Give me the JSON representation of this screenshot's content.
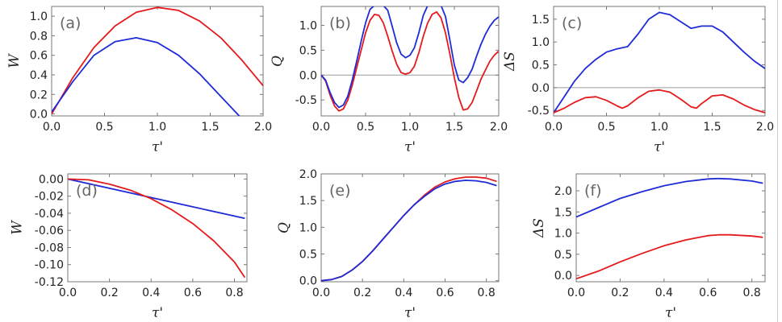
{
  "colors": {
    "red_series": "#e41a1c",
    "blue_series": "#1f2bd6"
  },
  "chart_data": [
    {
      "type": "line",
      "panel_label": "(a)",
      "xlabel": "τ'",
      "ylabel": "W",
      "xlim": [
        0,
        2.0
      ],
      "ylim": [
        -0.02,
        1.1
      ],
      "xticks": [
        "0.0",
        "0.5",
        "1.0",
        "1.5",
        "2.0"
      ],
      "xtick_values": [
        0,
        0.5,
        1,
        1.5,
        2
      ],
      "yticks": [
        "0.0",
        "0.2",
        "0.4",
        "0.6",
        "0.8",
        "1.0"
      ],
      "ytick_values": [
        0,
        0.2,
        0.4,
        0.6,
        0.8,
        1.0
      ],
      "zero_line": false,
      "series": [
        {
          "color": "#e41a1c",
          "x": [
            0,
            0.2,
            0.4,
            0.6,
            0.8,
            1.0,
            1.2,
            1.4,
            1.6,
            1.8,
            2.0
          ],
          "y": [
            0,
            0.37,
            0.68,
            0.9,
            1.04,
            1.09,
            1.06,
            0.95,
            0.78,
            0.55,
            0.29
          ]
        },
        {
          "color": "#1f2bd6",
          "x": [
            0,
            0.2,
            0.4,
            0.6,
            0.8,
            1.0,
            1.2,
            1.4,
            1.6,
            1.8,
            1.85
          ],
          "y": [
            0.02,
            0.33,
            0.6,
            0.74,
            0.78,
            0.73,
            0.6,
            0.41,
            0.18,
            -0.05,
            -0.1
          ]
        }
      ]
    },
    {
      "type": "line",
      "panel_label": "(b)",
      "xlabel": "τ'",
      "ylabel": "Q",
      "xlim": [
        0,
        2.0
      ],
      "ylim": [
        -0.82,
        1.38
      ],
      "xticks": [
        "0.0",
        "0.5",
        "1.0",
        "1.5",
        "2.0"
      ],
      "xtick_values": [
        0,
        0.5,
        1,
        1.5,
        2
      ],
      "yticks": [
        "-0.5",
        "0.0",
        "0.5",
        "1.0"
      ],
      "ytick_values": [
        -0.5,
        0,
        0.5,
        1.0
      ],
      "zero_line": true,
      "series": [
        {
          "color": "#e41a1c",
          "x": [
            0,
            0.05,
            0.1,
            0.15,
            0.2,
            0.25,
            0.3,
            0.35,
            0.4,
            0.45,
            0.5,
            0.55,
            0.6,
            0.65,
            0.7,
            0.75,
            0.8,
            0.85,
            0.9,
            0.95,
            1.0,
            1.05,
            1.1,
            1.15,
            1.2,
            1.25,
            1.3,
            1.35,
            1.4,
            1.45,
            1.5,
            1.55,
            1.6,
            1.65,
            1.7,
            1.75,
            1.8,
            1.85,
            1.9,
            1.95,
            2.0
          ],
          "y": [
            0,
            -0.12,
            -0.4,
            -0.62,
            -0.72,
            -0.68,
            -0.5,
            -0.2,
            0.15,
            0.5,
            0.85,
            1.1,
            1.22,
            1.2,
            1.05,
            0.78,
            0.48,
            0.22,
            0.05,
            0.02,
            0.05,
            0.18,
            0.45,
            0.78,
            1.05,
            1.22,
            1.27,
            1.15,
            0.85,
            0.42,
            -0.05,
            -0.45,
            -0.7,
            -0.68,
            -0.55,
            -0.32,
            -0.08,
            0.1,
            0.28,
            0.4,
            0.48
          ]
        },
        {
          "color": "#1f2bd6",
          "x": [
            0,
            0.05,
            0.1,
            0.15,
            0.2,
            0.25,
            0.3,
            0.35,
            0.4,
            0.45,
            0.5,
            0.55,
            0.6,
            0.65,
            0.7,
            0.75,
            0.8,
            0.85,
            0.9,
            0.95,
            1.0,
            1.05,
            1.1,
            1.15,
            1.2,
            1.25,
            1.3,
            1.35,
            1.4,
            1.45,
            1.5,
            1.55,
            1.6,
            1.65,
            1.7,
            1.75,
            1.8,
            1.85,
            1.9,
            1.95,
            2.0
          ],
          "y": [
            0,
            -0.1,
            -0.35,
            -0.55,
            -0.65,
            -0.6,
            -0.42,
            -0.1,
            0.28,
            0.68,
            1.05,
            1.32,
            1.4,
            1.4,
            1.4,
            1.3,
            0.98,
            0.65,
            0.42,
            0.35,
            0.4,
            0.55,
            0.85,
            1.2,
            1.4,
            1.4,
            1.4,
            1.4,
            1.18,
            0.7,
            0.2,
            -0.1,
            -0.15,
            -0.05,
            0.12,
            0.38,
            0.62,
            0.82,
            0.98,
            1.1,
            1.17
          ]
        }
      ]
    },
    {
      "type": "line",
      "panel_label": "(c)",
      "xlabel": "τ'",
      "ylabel": "ΔS",
      "xlim": [
        0,
        2.0
      ],
      "ylim": [
        -0.62,
        1.78
      ],
      "xticks": [
        "0.0",
        "0.5",
        "1.0",
        "1.5",
        "2.0"
      ],
      "xtick_values": [
        0,
        0.5,
        1,
        1.5,
        2
      ],
      "yticks": [
        "-0.5",
        "0.0",
        "0.5",
        "1.0",
        "1.5"
      ],
      "ytick_values": [
        -0.5,
        0,
        0.5,
        1.0,
        1.5
      ],
      "zero_line": true,
      "series": [
        {
          "color": "#1f2bd6",
          "x": [
            0,
            0.1,
            0.2,
            0.3,
            0.4,
            0.5,
            0.6,
            0.7,
            0.8,
            0.9,
            1.0,
            1.1,
            1.2,
            1.3,
            1.4,
            1.5,
            1.6,
            1.7,
            1.8,
            1.9,
            2.0
          ],
          "y": [
            -0.55,
            -0.2,
            0.15,
            0.42,
            0.62,
            0.78,
            0.85,
            0.9,
            1.18,
            1.5,
            1.65,
            1.6,
            1.45,
            1.3,
            1.35,
            1.35,
            1.22,
            1.0,
            0.78,
            0.58,
            0.42
          ]
        },
        {
          "color": "#e41a1c",
          "x": [
            0,
            0.1,
            0.2,
            0.3,
            0.4,
            0.5,
            0.6,
            0.65,
            0.7,
            0.8,
            0.9,
            1.0,
            1.1,
            1.2,
            1.3,
            1.35,
            1.4,
            1.5,
            1.6,
            1.7,
            1.8,
            1.9,
            2.0
          ],
          "y": [
            -0.55,
            -0.45,
            -0.32,
            -0.22,
            -0.2,
            -0.28,
            -0.4,
            -0.45,
            -0.4,
            -0.22,
            -0.08,
            -0.05,
            -0.1,
            -0.25,
            -0.42,
            -0.45,
            -0.35,
            -0.18,
            -0.16,
            -0.25,
            -0.38,
            -0.48,
            -0.55
          ]
        }
      ]
    },
    {
      "type": "line",
      "panel_label": "(d)",
      "xlabel": "τ'",
      "ylabel": "W",
      "xlim": [
        0,
        0.86
      ],
      "ylim": [
        -0.12,
        0.006
      ],
      "xticks": [
        "0.0",
        "0.2",
        "0.4",
        "0.6",
        "0.8"
      ],
      "xtick_values": [
        0,
        0.2,
        0.4,
        0.6,
        0.8
      ],
      "yticks": [
        "0.00",
        "-0.02",
        "-0.04",
        "-0.06",
        "-0.08",
        "-0.10",
        "-0.12"
      ],
      "ytick_values": [
        0,
        -0.02,
        -0.04,
        -0.06,
        -0.08,
        -0.1,
        -0.12
      ],
      "zero_line": false,
      "series": [
        {
          "color": "#1f2bd6",
          "x": [
            0,
            0.85
          ],
          "y": [
            0,
            -0.046
          ]
        },
        {
          "color": "#e41a1c",
          "x": [
            0,
            0.1,
            0.2,
            0.3,
            0.4,
            0.5,
            0.6,
            0.7,
            0.8,
            0.85
          ],
          "y": [
            0,
            -0.001,
            -0.006,
            -0.013,
            -0.023,
            -0.036,
            -0.052,
            -0.072,
            -0.097,
            -0.115
          ]
        }
      ]
    },
    {
      "type": "line",
      "panel_label": "(e)",
      "xlabel": "τ'",
      "ylabel": "Q",
      "xlim": [
        0,
        0.86
      ],
      "ylim": [
        -0.02,
        2.0
      ],
      "xticks": [
        "0.0",
        "0.2",
        "0.4",
        "0.6",
        "0.8"
      ],
      "xtick_values": [
        0,
        0.2,
        0.4,
        0.6,
        0.8
      ],
      "yticks": [
        "0.0",
        "0.5",
        "1.0",
        "1.5",
        "2.0"
      ],
      "ytick_values": [
        0,
        0.5,
        1.0,
        1.5,
        2.0
      ],
      "zero_line": false,
      "series": [
        {
          "color": "#e41a1c",
          "x": [
            0,
            0.05,
            0.1,
            0.15,
            0.2,
            0.25,
            0.3,
            0.35,
            0.4,
            0.45,
            0.5,
            0.55,
            0.6,
            0.65,
            0.7,
            0.75,
            0.8,
            0.85
          ],
          "y": [
            0,
            0.02,
            0.08,
            0.2,
            0.36,
            0.56,
            0.78,
            1.0,
            1.22,
            1.42,
            1.6,
            1.75,
            1.85,
            1.91,
            1.94,
            1.94,
            1.92,
            1.86
          ]
        },
        {
          "color": "#1f2bd6",
          "x": [
            0,
            0.05,
            0.1,
            0.15,
            0.2,
            0.25,
            0.3,
            0.35,
            0.4,
            0.45,
            0.5,
            0.55,
            0.6,
            0.65,
            0.7,
            0.75,
            0.8,
            0.85
          ],
          "y": [
            0,
            0.02,
            0.08,
            0.2,
            0.36,
            0.56,
            0.78,
            1.0,
            1.22,
            1.42,
            1.58,
            1.72,
            1.81,
            1.86,
            1.88,
            1.87,
            1.84,
            1.78
          ]
        }
      ]
    },
    {
      "type": "line",
      "panel_label": "(f)",
      "xlabel": "τ'",
      "ylabel": "ΔS",
      "xlim": [
        0,
        0.86
      ],
      "ylim": [
        -0.15,
        2.4
      ],
      "xticks": [
        "0.0",
        "0.2",
        "0.4",
        "0.6",
        "0.8"
      ],
      "xtick_values": [
        0,
        0.2,
        0.4,
        0.6,
        0.8
      ],
      "yticks": [
        "0.0",
        "0.5",
        "1.0",
        "1.5",
        "2.0"
      ],
      "ytick_values": [
        0,
        0.5,
        1.0,
        1.5,
        2.0
      ],
      "zero_line": false,
      "series": [
        {
          "color": "#1f2bd6",
          "x": [
            0,
            0.1,
            0.2,
            0.3,
            0.4,
            0.5,
            0.6,
            0.65,
            0.7,
            0.8,
            0.85
          ],
          "y": [
            1.38,
            1.6,
            1.82,
            1.98,
            2.12,
            2.22,
            2.28,
            2.29,
            2.28,
            2.23,
            2.18
          ]
        },
        {
          "color": "#e41a1c",
          "x": [
            0,
            0.1,
            0.2,
            0.3,
            0.4,
            0.5,
            0.6,
            0.65,
            0.7,
            0.8,
            0.85
          ],
          "y": [
            -0.08,
            0.1,
            0.32,
            0.52,
            0.7,
            0.84,
            0.94,
            0.96,
            0.96,
            0.93,
            0.9
          ]
        }
      ]
    }
  ]
}
